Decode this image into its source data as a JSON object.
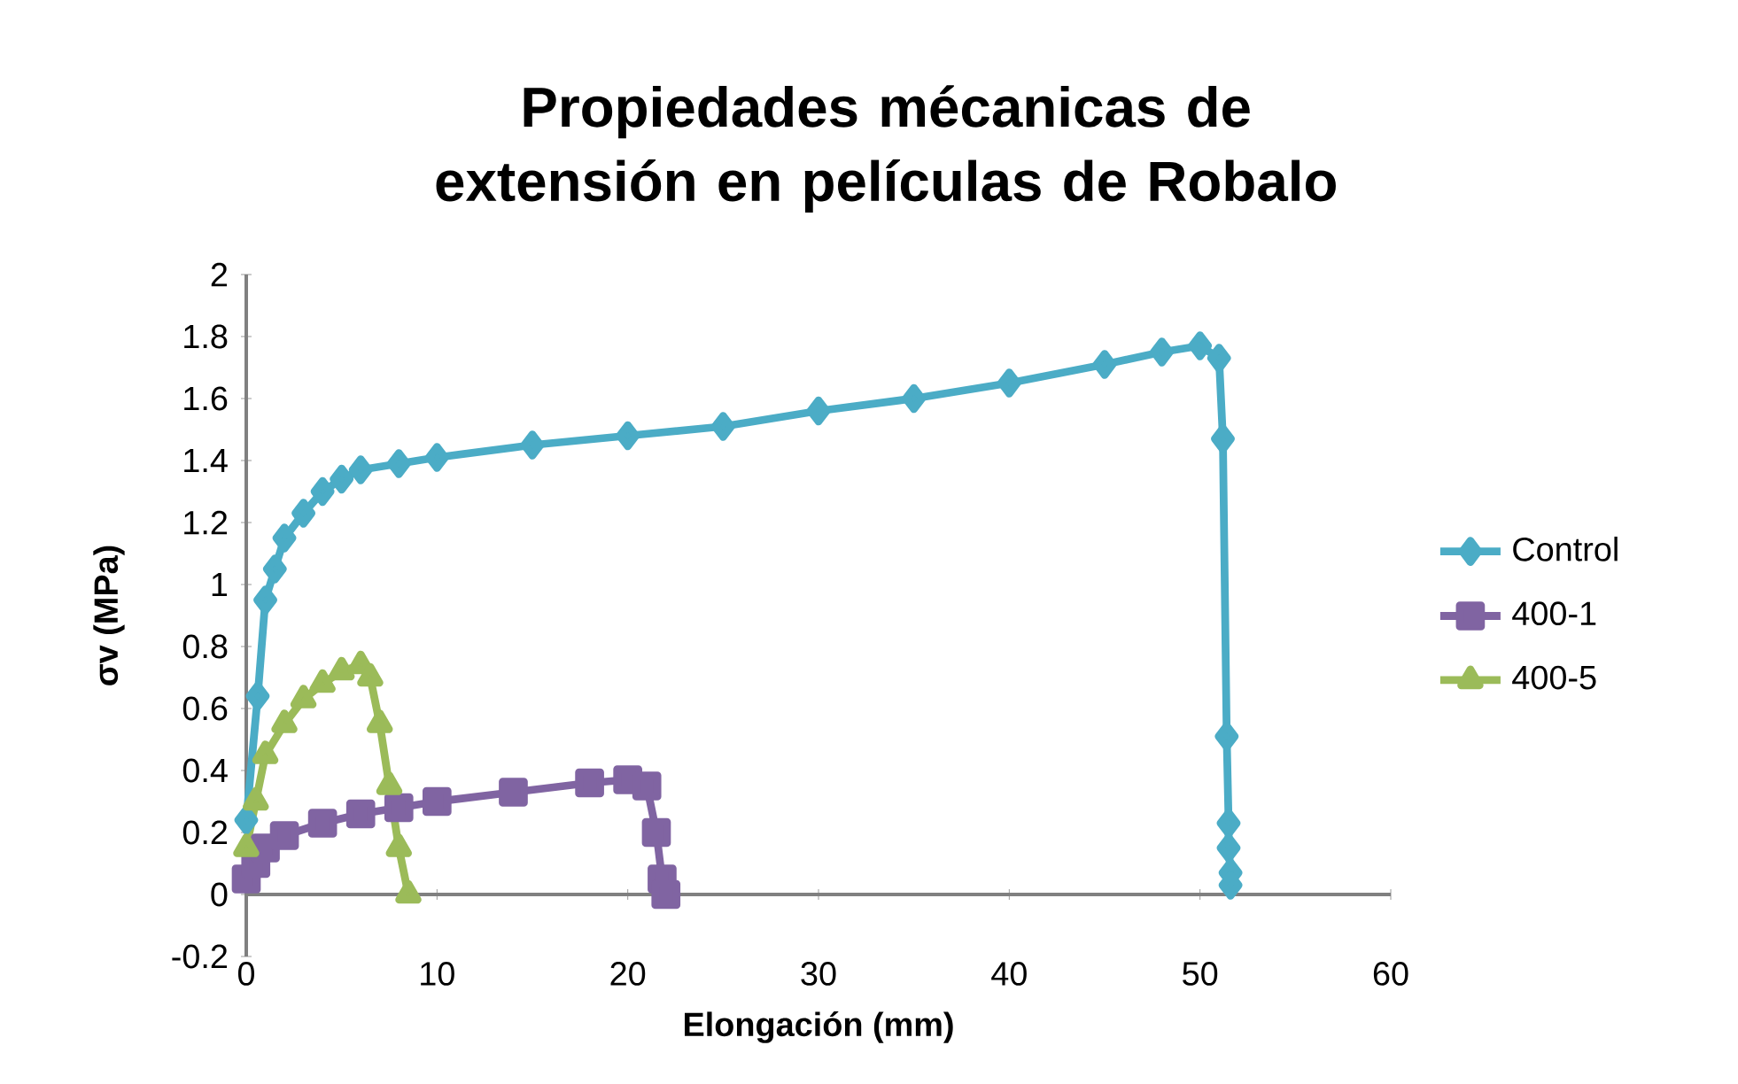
{
  "chart_data": {
    "type": "line",
    "title": "Propiedades mécanicas de extensión en películas de Robalo",
    "xlabel": "Elongación (mm)",
    "ylabel": "σv (MPa)",
    "xlim": [
      0,
      60
    ],
    "xticks": [
      0,
      10,
      20,
      30,
      40,
      50,
      60
    ],
    "ylim": [
      -0.2,
      2
    ],
    "yticks": [
      -0.2,
      0,
      0.2,
      0.4,
      0.6,
      0.8,
      1,
      1.2,
      1.4,
      1.6,
      1.8,
      2
    ],
    "grid": false,
    "legend": "right",
    "series": [
      {
        "name": "Control",
        "color": "#4bacc6",
        "marker": "diamond",
        "x": [
          0,
          0.6,
          1,
          1.5,
          2,
          3,
          4,
          5,
          6,
          8,
          10,
          15,
          20,
          25,
          30,
          35,
          40,
          45,
          48,
          50,
          51,
          51.2,
          51.4,
          51.5,
          51.5,
          51.6,
          51.6
        ],
        "values": [
          0.24,
          0.64,
          0.95,
          1.05,
          1.15,
          1.23,
          1.3,
          1.34,
          1.37,
          1.39,
          1.41,
          1.45,
          1.48,
          1.51,
          1.56,
          1.6,
          1.65,
          1.71,
          1.75,
          1.77,
          1.73,
          1.47,
          0.51,
          0.23,
          0.15,
          0.07,
          0.03
        ]
      },
      {
        "name": "400-1",
        "color": "#8064a2",
        "marker": "square",
        "x": [
          0,
          0.5,
          1,
          2,
          4,
          6,
          8,
          10,
          14,
          18,
          20,
          21,
          21.5,
          21.8,
          22
        ],
        "values": [
          0.05,
          0.1,
          0.15,
          0.19,
          0.23,
          0.26,
          0.28,
          0.3,
          0.33,
          0.36,
          0.37,
          0.35,
          0.2,
          0.05,
          0
        ]
      },
      {
        "name": "400-5",
        "color": "#9bbb59",
        "marker": "triangle",
        "x": [
          0,
          0.5,
          1,
          2,
          3,
          4,
          5,
          6,
          6.5,
          7,
          7.5,
          8,
          8.5
        ],
        "values": [
          0.15,
          0.3,
          0.45,
          0.55,
          0.63,
          0.68,
          0.72,
          0.74,
          0.7,
          0.55,
          0.35,
          0.15,
          0
        ]
      }
    ]
  }
}
